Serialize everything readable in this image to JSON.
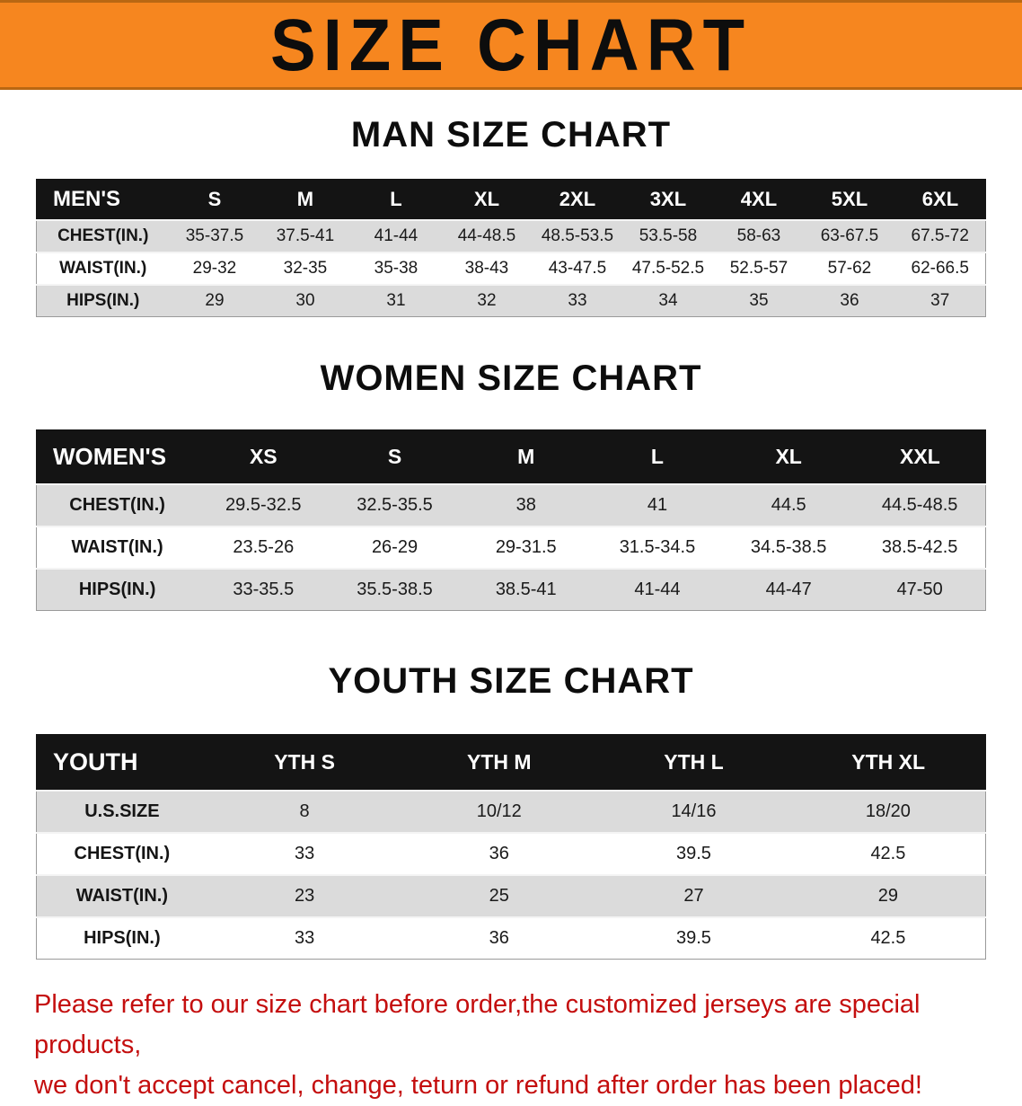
{
  "banner": {
    "title": "SIZE CHART"
  },
  "sections": [
    {
      "id": "men",
      "heading": "MAN SIZE CHART",
      "table": {
        "header": [
          "MEN'S",
          "S",
          "M",
          "L",
          "XL",
          "2XL",
          "3XL",
          "4XL",
          "5XL",
          "6XL"
        ],
        "rows": [
          [
            "CHEST(IN.)",
            "35-37.5",
            "37.5-41",
            "41-44",
            "44-48.5",
            "48.5-53.5",
            "53.5-58",
            "58-63",
            "63-67.5",
            "67.5-72"
          ],
          [
            "WAIST(IN.)",
            "29-32",
            "32-35",
            "35-38",
            "38-43",
            "43-47.5",
            "47.5-52.5",
            "52.5-57",
            "57-62",
            "62-66.5"
          ],
          [
            "HIPS(IN.)",
            "29",
            "30",
            "31",
            "32",
            "33",
            "34",
            "35",
            "36",
            "37"
          ]
        ]
      }
    },
    {
      "id": "women",
      "heading": "WOMEN SIZE CHART",
      "table": {
        "header": [
          "WOMEN'S",
          "XS",
          "S",
          "M",
          "L",
          "XL",
          "XXL"
        ],
        "rows": [
          [
            "CHEST(IN.)",
            "29.5-32.5",
            "32.5-35.5",
            "38",
            "41",
            "44.5",
            "44.5-48.5"
          ],
          [
            "WAIST(IN.)",
            "23.5-26",
            "26-29",
            "29-31.5",
            "31.5-34.5",
            "34.5-38.5",
            "38.5-42.5"
          ],
          [
            "HIPS(IN.)",
            "33-35.5",
            "35.5-38.5",
            "38.5-41",
            "41-44",
            "44-47",
            "47-50"
          ]
        ]
      }
    },
    {
      "id": "youth",
      "heading": "YOUTH SIZE CHART",
      "table": {
        "header": [
          "YOUTH",
          "YTH S",
          "YTH M",
          "YTH L",
          "YTH XL"
        ],
        "rows": [
          [
            "U.S.SIZE",
            "8",
            "10/12",
            "14/16",
            "18/20"
          ],
          [
            "CHEST(IN.)",
            "33",
            "36",
            "39.5",
            "42.5"
          ],
          [
            "WAIST(IN.)",
            "23",
            "25",
            "27",
            "29"
          ],
          [
            "HIPS(IN.)",
            "33",
            "36",
            "39.5",
            "42.5"
          ]
        ]
      }
    }
  ],
  "footer": {
    "line1": "Please refer to our size chart before order,the customized jerseys are special products,",
    "line2": "we don't accept cancel, change, teturn or refund after order has been placed!"
  },
  "colors": {
    "banner_background": "#f6861f",
    "table_header_background": "#141414",
    "table_row_alt_background": "#dbdbdb",
    "footer_text": "#c40e0e"
  }
}
